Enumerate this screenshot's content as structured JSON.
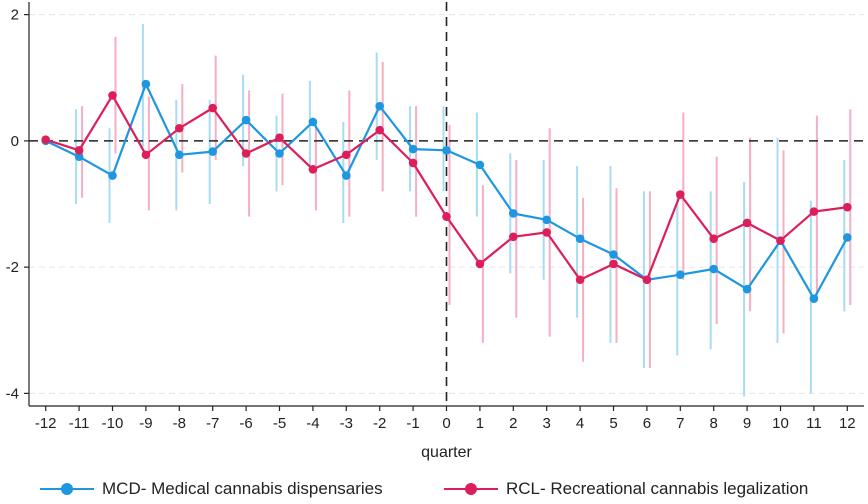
{
  "chart_data": {
    "type": "line",
    "title": "",
    "xlabel": "quarter",
    "ylabel": "",
    "x": [
      -12,
      -11,
      -10,
      -9,
      -8,
      -7,
      -6,
      -5,
      -4,
      -3,
      -2,
      -1,
      0,
      1,
      2,
      3,
      4,
      5,
      6,
      7,
      8,
      9,
      10,
      11,
      12
    ],
    "xlim": [
      -12.5,
      12.5
    ],
    "ylim": [
      -4.2,
      2.2
    ],
    "yticks": [
      -4,
      -2,
      0,
      2
    ],
    "grid": "horizontal dashed",
    "reference_lines": {
      "y": 0,
      "x": 0,
      "style": "dashed"
    },
    "legend_position": "bottom",
    "series": [
      {
        "name": "MCD- Medical cannabis dispensaries",
        "color": "#1f96e0",
        "ci_color": "#a8dcf5",
        "values": [
          0.0,
          -0.25,
          -0.55,
          0.9,
          -0.22,
          -0.17,
          0.33,
          -0.2,
          0.3,
          -0.55,
          0.55,
          -0.13,
          -0.15,
          -0.38,
          -1.15,
          -1.25,
          -1.55,
          -1.8,
          -2.2,
          -2.12,
          -2.03,
          -2.35,
          -1.58,
          -2.5,
          -1.53
        ],
        "ci_lower": [
          0.0,
          -1.0,
          -1.3,
          -0.1,
          -1.1,
          -1.0,
          -0.4,
          -0.8,
          -0.4,
          -1.3,
          -0.3,
          -0.8,
          -0.8,
          -1.2,
          -2.1,
          -2.2,
          -2.8,
          -3.2,
          -3.6,
          -3.4,
          -3.3,
          -4.05,
          -3.2,
          -4.0,
          -2.7
        ],
        "ci_upper": [
          0.0,
          0.5,
          0.2,
          1.85,
          0.65,
          0.65,
          1.05,
          0.4,
          0.95,
          0.3,
          1.4,
          0.55,
          0.55,
          0.45,
          -0.2,
          -0.3,
          -0.4,
          -0.4,
          -0.8,
          -0.8,
          -0.8,
          -0.65,
          0.05,
          -0.95,
          -0.3
        ]
      },
      {
        "name": "RCL- Recreational cannabis legalization",
        "color": "#dc1f5a",
        "ci_color": "#f5aec3",
        "values": [
          0.02,
          -0.15,
          0.72,
          -0.22,
          0.2,
          0.52,
          -0.2,
          0.05,
          -0.45,
          -0.22,
          0.17,
          -0.35,
          -1.2,
          -1.95,
          -1.52,
          -1.45,
          -2.2,
          -1.95,
          -2.2,
          -0.85,
          -1.55,
          -1.3,
          -1.58,
          -1.12,
          -1.05
        ],
        "ci_lower": [
          0.02,
          -0.9,
          -0.2,
          -1.1,
          -0.5,
          -0.3,
          -1.2,
          -0.7,
          -1.1,
          -1.2,
          -0.8,
          -1.2,
          -2.6,
          -3.2,
          -2.8,
          -3.1,
          -3.5,
          -3.2,
          -3.6,
          -2.2,
          -2.9,
          -2.7,
          -3.05,
          -2.5,
          -2.6
        ],
        "ci_upper": [
          0.02,
          0.55,
          1.65,
          0.7,
          0.9,
          1.35,
          0.8,
          0.75,
          0.3,
          0.8,
          1.25,
          0.55,
          0.25,
          -0.7,
          -0.3,
          0.2,
          -0.9,
          -0.75,
          -0.8,
          0.45,
          -0.25,
          0.05,
          -0.15,
          0.4,
          0.5
        ]
      }
    ]
  },
  "legend": {
    "mcd_label": "MCD- Medical cannabis dispensaries",
    "rcl_label": "RCL- Recreational cannabis legalization"
  }
}
